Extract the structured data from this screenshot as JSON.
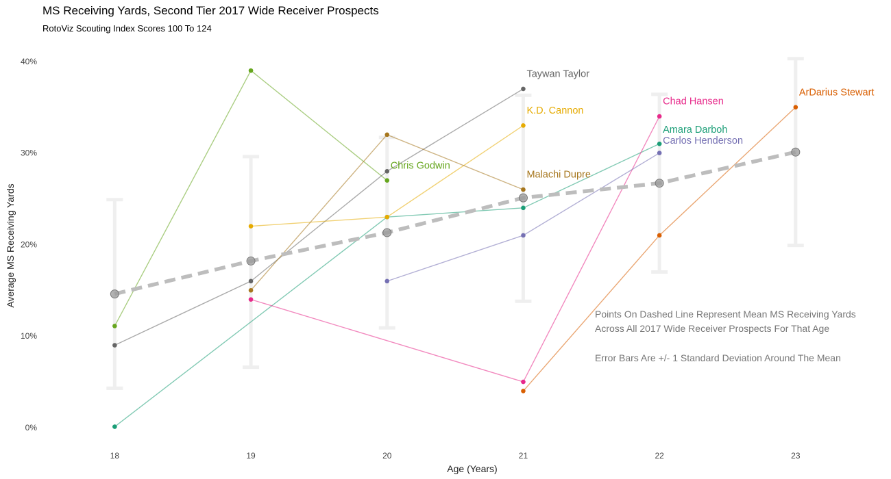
{
  "title": "MS Receiving Yards, Second Tier 2017 Wide Receiver Prospects",
  "subtitle": "RotoViz Scouting Index Scores 100 To 124",
  "chart_data": {
    "type": "line",
    "xlabel": "Age (Years)",
    "ylabel": "Average MS Receiving Yards",
    "xlim": [
      17.5,
      23.65
    ],
    "ylim": [
      -1.5,
      42
    ],
    "x_ticks": [
      18,
      19,
      20,
      21,
      22,
      23
    ],
    "x_tick_labels": [
      "18",
      "19",
      "20",
      "21",
      "22",
      "23"
    ],
    "y_ticks": [
      0,
      10,
      20,
      30,
      40
    ],
    "y_tick_labels": [
      "0%",
      "10%",
      "20%",
      "30%",
      "40%"
    ],
    "grid": false,
    "legend": "none (direct labels)",
    "mean": {
      "x": [
        18,
        19,
        20,
        21,
        22,
        23
      ],
      "y": [
        14.6,
        18.2,
        21.3,
        25.1,
        26.7,
        30.1
      ],
      "sd_low": [
        4.3,
        6.6,
        10.9,
        13.8,
        17.0,
        19.9
      ],
      "sd_high": [
        24.9,
        29.6,
        31.7,
        36.3,
        36.4,
        40.3
      ],
      "color": "#bdbdbd"
    },
    "series": [
      {
        "name": "Chris Godwin",
        "color": "#66A61E",
        "x": [
          18,
          19,
          20
        ],
        "y": [
          11.1,
          39.0,
          27.0
        ],
        "label_x": 20,
        "label_y": 28.3
      },
      {
        "name": "Amara Darboh",
        "color": "#1B9E77",
        "x": [
          18,
          20,
          21,
          22
        ],
        "y": [
          0.1,
          23.0,
          24.0,
          31.0
        ],
        "label_x": 22,
        "label_y": 32.2
      },
      {
        "name": "Taywan Taylor",
        "color": "#666666",
        "x": [
          18,
          19,
          20,
          21
        ],
        "y": [
          9.0,
          16.0,
          28.0,
          37.0
        ],
        "label_x": 21,
        "label_y": 38.3
      },
      {
        "name": "K.D. Cannon",
        "color": "#E6AB02",
        "x": [
          19,
          20,
          21
        ],
        "y": [
          22.0,
          23.0,
          33.0
        ],
        "label_x": 21,
        "label_y": 34.3
      },
      {
        "name": "Malachi Dupre",
        "color": "#A6761D",
        "x": [
          19,
          20,
          21
        ],
        "y": [
          15.0,
          32.0,
          26.0
        ],
        "label_x": 21,
        "label_y": 27.3
      },
      {
        "name": "Chad Hansen",
        "color": "#E7298A",
        "x": [
          19,
          21,
          22
        ],
        "y": [
          14.0,
          5.0,
          34.0
        ],
        "label_x": 22,
        "label_y": 35.3
      },
      {
        "name": "Carlos Henderson",
        "color": "#7570B3",
        "x": [
          20,
          21,
          22
        ],
        "y": [
          16.0,
          21.0,
          30.0
        ],
        "label_x": 22,
        "label_y": 31.0
      },
      {
        "name": "ArDarius Stewart",
        "color": "#D95F02",
        "x": [
          21,
          22,
          23
        ],
        "y": [
          4.0,
          21.0,
          35.0
        ],
        "label_x": 23,
        "label_y": 36.3
      }
    ],
    "annotations": [
      "Points On Dashed Line Represent Mean MS Receiving Yards",
      "Across All 2017 Wide Receiver Prospects For That Age",
      "Error Bars Are +/- 1 Standard Deviation Around The Mean"
    ]
  }
}
